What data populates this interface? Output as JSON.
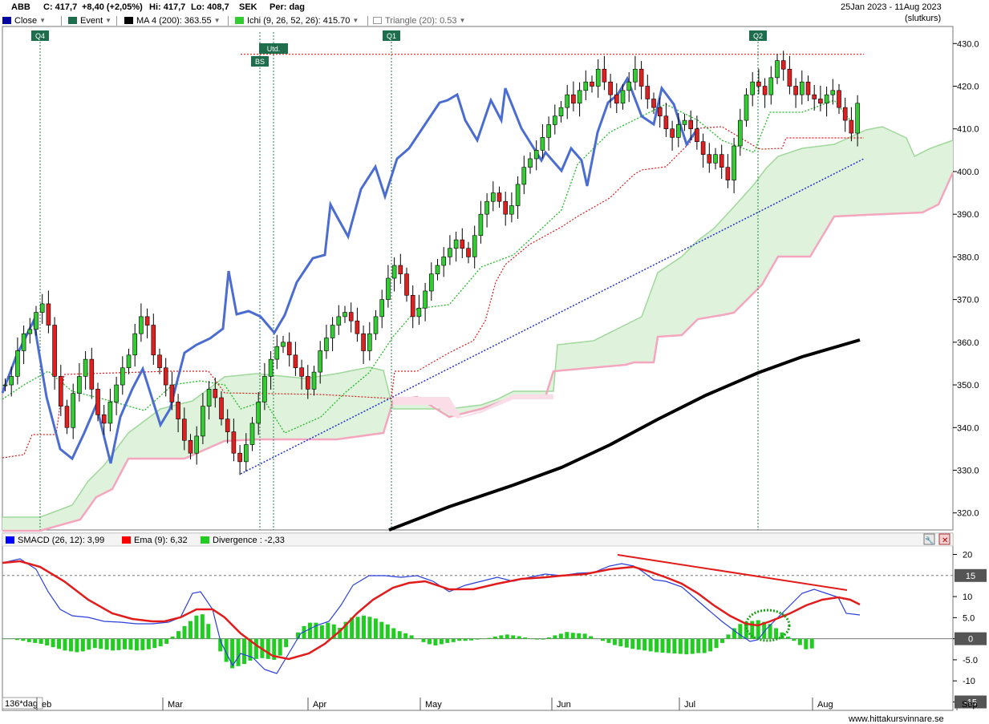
{
  "header": {
    "ticker": "ABB",
    "close": "C: 417,7",
    "change": "+8,40 (+2,05%)",
    "high": "Hi: 417,7",
    "low": "Lo: 408,7",
    "currency": "SEK",
    "period": "Per: dag",
    "date_range": "25Jan 2023 - 11Aug 2023",
    "price_type": "(slutkurs)"
  },
  "legend": [
    {
      "label": "Close",
      "color": "#0000a0"
    },
    {
      "label": "Event",
      "color": "#1e6e4e"
    },
    {
      "label": "MA 4 (200): 363.55",
      "color": "#000000"
    },
    {
      "label": "Ichi (9, 26, 52, 26): 415.70",
      "color": "#33cc33"
    },
    {
      "label": "Triangle (20): 0.53",
      "color": "#ffffff"
    }
  ],
  "events": [
    {
      "label": "Q4",
      "date_index": 8
    },
    {
      "label": "BS",
      "date_index": 54
    },
    {
      "label": "Utd.",
      "date_index": 57
    },
    {
      "label": "Q1",
      "date_index": 84
    },
    {
      "label": "Q2",
      "date_index": 163
    }
  ],
  "macd_legend": [
    {
      "label": "SMACD (26, 12): 3,99",
      "color": "#0000ff"
    },
    {
      "label": "Ema (9): 6,32",
      "color": "#ff0000"
    },
    {
      "label": "Divergence : -2,33",
      "color": "#22cc22"
    }
  ],
  "footer": {
    "interval": "136*dag",
    "site": "www.hittakursvinnare.se",
    "x_labels": [
      "eb",
      "Mar",
      "Apr",
      "May",
      "Jun",
      "Jul",
      "Aug",
      "Sep"
    ]
  },
  "chart_data": [
    {
      "type": "candlestick",
      "ylim": [
        316,
        434
      ],
      "yticks": [
        "430.0",
        "420.0",
        "410.0",
        "400.0",
        "390.0",
        "380.0",
        "370.0",
        "360.0",
        "350.0",
        "340.0",
        "330.0",
        "320.0"
      ],
      "ohlc_sample": [
        {
          "o": 350,
          "h": 354,
          "l": 347,
          "c": 352
        },
        {
          "o": 358,
          "h": 363,
          "l": 355,
          "c": 362
        },
        {
          "o": 365,
          "h": 368,
          "l": 362,
          "c": 367
        },
        {
          "o": 360,
          "h": 364,
          "l": 350,
          "c": 352
        },
        {
          "o": 340,
          "h": 347,
          "l": 331,
          "c": 334
        },
        {
          "o": 345,
          "h": 352,
          "l": 342,
          "c": 350
        },
        {
          "o": 372,
          "h": 379,
          "l": 366,
          "c": 376
        },
        {
          "o": 378,
          "h": 381,
          "l": 368,
          "c": 372
        },
        {
          "o": 398,
          "h": 401,
          "l": 392,
          "c": 396
        },
        {
          "o": 415,
          "h": 424,
          "l": 412,
          "c": 421
        },
        {
          "o": 420,
          "h": 425,
          "l": 408,
          "c": 412
        },
        {
          "o": 402,
          "h": 411,
          "l": 395,
          "c": 405
        },
        {
          "o": 422,
          "h": 430,
          "l": 415,
          "c": 426
        },
        {
          "o": 416,
          "h": 422,
          "l": 407,
          "c": 409
        },
        {
          "o": 409,
          "h": 418,
          "l": 408,
          "c": 418
        }
      ],
      "resistance_level": 427.5,
      "ma200_last": 363.55,
      "ichimoku_last": 415.7,
      "horizontal_line": 427.5
    },
    {
      "type": "line",
      "name": "MACD",
      "ylim": [
        -17,
        22
      ],
      "yticks": [
        "20",
        "10",
        "5.0",
        "0",
        "-5.0",
        "-10",
        "-15"
      ],
      "highlighted_labels": [
        "15",
        "0",
        "-15"
      ],
      "smacd_last": 3.99,
      "ema9_last": 6.32,
      "divergence_last": -2.33
    }
  ]
}
